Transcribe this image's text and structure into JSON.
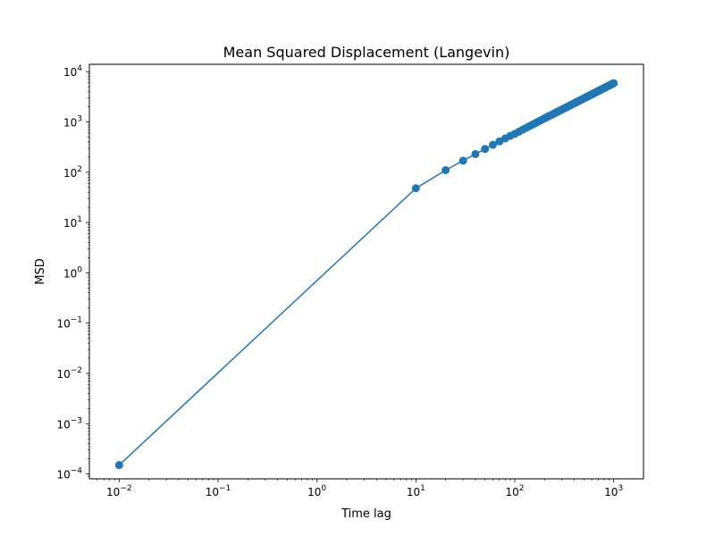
{
  "chart_data": {
    "type": "line",
    "title": "Mean Squared Displacement (Langevin)",
    "xlabel": "Time lag",
    "ylabel": "MSD",
    "xscale": "log",
    "yscale": "log",
    "xlim": [
      0.005,
      2000
    ],
    "ylim": [
      8e-05,
      14000
    ],
    "grid": false,
    "legend": "none",
    "markers": true,
    "x_ticks": [
      {
        "value": 0.01,
        "mantissa": "10",
        "exponent": "−2"
      },
      {
        "value": 0.1,
        "mantissa": "10",
        "exponent": "−1"
      },
      {
        "value": 1,
        "mantissa": "10",
        "exponent": "0"
      },
      {
        "value": 10,
        "mantissa": "10",
        "exponent": "1"
      },
      {
        "value": 100,
        "mantissa": "10",
        "exponent": "2"
      },
      {
        "value": 1000,
        "mantissa": "10",
        "exponent": "3"
      }
    ],
    "y_ticks": [
      {
        "value": 0.0001,
        "mantissa": "10",
        "exponent": "−4"
      },
      {
        "value": 0.001,
        "mantissa": "10",
        "exponent": "−3"
      },
      {
        "value": 0.01,
        "mantissa": "10",
        "exponent": "−2"
      },
      {
        "value": 0.1,
        "mantissa": "10",
        "exponent": "−1"
      },
      {
        "value": 1,
        "mantissa": "10",
        "exponent": "0"
      },
      {
        "value": 10,
        "mantissa": "10",
        "exponent": "1"
      },
      {
        "value": 100,
        "mantissa": "10",
        "exponent": "2"
      },
      {
        "value": 1000,
        "mantissa": "10",
        "exponent": "3"
      },
      {
        "value": 10000,
        "mantissa": "10",
        "exponent": "4"
      }
    ],
    "series": [
      {
        "color": "#1f77b4",
        "x": [
          0.01,
          10,
          20,
          30,
          40,
          50,
          60,
          70,
          80,
          90,
          100,
          110,
          120,
          130,
          140,
          150,
          160,
          170,
          180,
          190,
          200,
          210,
          220,
          230,
          240,
          250,
          260,
          270,
          280,
          290,
          300,
          310,
          320,
          330,
          340,
          350,
          360,
          370,
          380,
          390,
          400,
          410,
          420,
          430,
          440,
          450,
          460,
          470,
          480,
          490,
          500,
          510,
          520,
          530,
          540,
          550,
          560,
          570,
          580,
          590,
          600,
          610,
          620,
          630,
          640,
          650,
          660,
          670,
          680,
          690,
          700,
          710,
          720,
          730,
          740,
          750,
          760,
          770,
          780,
          790,
          800,
          810,
          820,
          830,
          840,
          850,
          860,
          870,
          880,
          890,
          900,
          910,
          920,
          930,
          940,
          950,
          960,
          970,
          980,
          990,
          1000
        ],
        "y": [
          0.00015,
          48,
          110,
          170,
          230,
          290,
          350,
          410,
          470,
          530,
          580,
          640,
          700,
          760,
          820,
          880,
          940,
          1000,
          1060,
          1120,
          1180,
          1240,
          1300,
          1350,
          1410,
          1470,
          1530,
          1590,
          1650,
          1710,
          1770,
          1830,
          1890,
          1950,
          2000,
          2060,
          2120,
          2180,
          2240,
          2300,
          2360,
          2420,
          2480,
          2540,
          2600,
          2650,
          2710,
          2770,
          2830,
          2890,
          2950,
          3010,
          3070,
          3130,
          3190,
          3250,
          3300,
          3360,
          3420,
          3480,
          3540,
          3600,
          3660,
          3720,
          3780,
          3840,
          3900,
          3950,
          4010,
          4070,
          4130,
          4190,
          4250,
          4310,
          4370,
          4430,
          4490,
          4550,
          4600,
          4660,
          4720,
          4780,
          4840,
          4900,
          4960,
          5020,
          5080,
          5140,
          5200,
          5250,
          5310,
          5370,
          5430,
          5490,
          5550,
          5610,
          5670,
          5730,
          5790,
          5850,
          5900
        ]
      }
    ]
  }
}
